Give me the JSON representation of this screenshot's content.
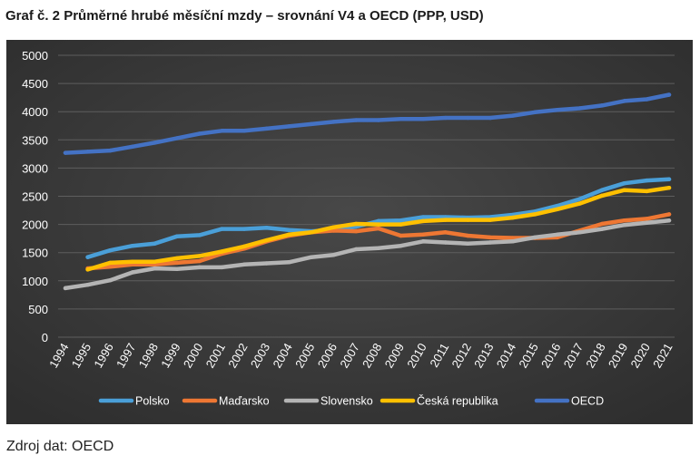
{
  "title": "Graf č.  2 Průměrné hrubé měsíční mzdy – srovnání V4 a OECD (PPP, USD)",
  "source": "Zdroj dat: OECD",
  "chart_data": {
    "type": "line",
    "title": "",
    "xlabel": "",
    "ylabel": "",
    "ylim": [
      0,
      5000
    ],
    "yticks": [
      0,
      500,
      1000,
      1500,
      2000,
      2500,
      3000,
      3500,
      4000,
      4500,
      5000
    ],
    "grid": true,
    "legend_position": "bottom",
    "background": "#3c3c3c",
    "categories": [
      "1994",
      "1995",
      "1996",
      "1997",
      "1998",
      "1999",
      "2000",
      "2001",
      "2002",
      "2003",
      "2004",
      "2005",
      "2006",
      "2007",
      "2008",
      "2009",
      "2010",
      "2011",
      "2012",
      "2013",
      "2014",
      "2015",
      "2016",
      "2017",
      "2018",
      "2019",
      "2020",
      "2021"
    ],
    "series": [
      {
        "name": "Polsko",
        "color": "#4a9fd8",
        "values": [
          null,
          1420,
          1540,
          1620,
          1660,
          1790,
          1810,
          1920,
          1920,
          1940,
          1900,
          1880,
          1900,
          1960,
          2060,
          2070,
          2130,
          2130,
          2120,
          2130,
          2170,
          2230,
          2330,
          2450,
          2610,
          2730,
          2780,
          2800
        ]
      },
      {
        "name": "Maďarsko",
        "color": "#ee7733",
        "values": [
          null,
          1220,
          1250,
          1290,
          1290,
          1320,
          1350,
          1480,
          1570,
          1700,
          1800,
          1860,
          1890,
          1880,
          1930,
          1800,
          1820,
          1860,
          1800,
          1770,
          1760,
          1760,
          1770,
          1890,
          2010,
          2070,
          2100,
          2180
        ]
      },
      {
        "name": "Slovensko",
        "color": "#b4b4b4",
        "values": [
          870,
          930,
          1010,
          1150,
          1220,
          1210,
          1240,
          1240,
          1290,
          1310,
          1330,
          1420,
          1460,
          1560,
          1580,
          1620,
          1700,
          1680,
          1660,
          1680,
          1700,
          1770,
          1820,
          1860,
          1920,
          1990,
          2030,
          2070
        ]
      },
      {
        "name": "Česká republika",
        "color": "#ffc000",
        "values": [
          null,
          1200,
          1320,
          1340,
          1340,
          1400,
          1440,
          1520,
          1610,
          1720,
          1820,
          1860,
          1950,
          2010,
          2000,
          2000,
          2060,
          2080,
          2080,
          2080,
          2120,
          2180,
          2270,
          2370,
          2510,
          2610,
          2590,
          2650
        ]
      },
      {
        "name": "OECD",
        "color": "#4472c4",
        "values": [
          3270,
          3290,
          3310,
          3380,
          3450,
          3530,
          3610,
          3660,
          3660,
          3700,
          3740,
          3780,
          3820,
          3850,
          3850,
          3870,
          3870,
          3890,
          3890,
          3890,
          3930,
          3990,
          4030,
          4060,
          4110,
          4190,
          4220,
          4300
        ]
      }
    ]
  }
}
